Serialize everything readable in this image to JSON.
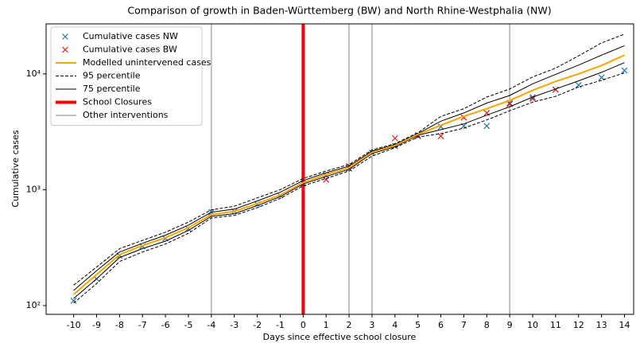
{
  "chart_data": {
    "type": "line",
    "title": "Comparison of growth in Baden-Württemberg (BW) and North Rhine-Westphalia (NW)",
    "x_label": "Days since effective school closure",
    "y_label": "Cumulative cases",
    "y_scale": "log",
    "xlim": [
      -11.2,
      14.4
    ],
    "ylim": [
      84,
      27000
    ],
    "xticks": [
      -10,
      -9,
      -8,
      -7,
      -6,
      -5,
      -4,
      -3,
      -2,
      -1,
      0,
      1,
      2,
      3,
      4,
      5,
      6,
      7,
      8,
      9,
      10,
      11,
      12,
      13,
      14
    ],
    "yticks": [
      {
        "value": 100,
        "label": "10²"
      },
      {
        "value": 1000,
        "label": "10³"
      },
      {
        "value": 10000,
        "label": "10⁴"
      }
    ],
    "x": [
      -10,
      -9,
      -8,
      -7,
      -6,
      -5,
      -4,
      -3,
      -2,
      -1,
      0,
      1,
      2,
      3,
      4,
      5,
      6,
      7,
      8,
      9,
      10,
      11,
      12,
      13,
      14
    ],
    "series": [
      {
        "name": "Cumulative cases NW",
        "color": "#1f77b4",
        "marker": "x",
        "x": [
          -10,
          -9,
          -8,
          -7,
          -6,
          -5,
          -4,
          -3,
          -2,
          -1,
          0,
          1,
          2,
          3,
          4,
          5,
          6,
          7,
          8,
          9,
          10,
          11,
          12,
          13,
          14
        ],
        "values": [
          110,
          170,
          270,
          325,
          380,
          460,
          640,
          650,
          750,
          890,
          1130,
          1330,
          1520,
          2080,
          2380,
          2950,
          3500,
          3550,
          3550,
          5600,
          6300,
          7300,
          8000,
          9300,
          10700
        ]
      },
      {
        "name": "Cumulative cases BW",
        "color": "#e41a1c",
        "marker": "x",
        "x": [
          1,
          2,
          4,
          5,
          6,
          7,
          8,
          9,
          10,
          11
        ],
        "values": [
          1220,
          1600,
          2780,
          2900,
          2900,
          4200,
          4600,
          5500,
          6100,
          7300
        ]
      },
      {
        "name": "Modelled unintervened cases",
        "color": "#ffa500",
        "width": 2,
        "values": [
          125,
          185,
          275,
          330,
          385,
          470,
          610,
          650,
          760,
          900,
          1150,
          1350,
          1550,
          2100,
          2400,
          3000,
          3600,
          4300,
          5000,
          5900,
          7200,
          8600,
          10000,
          11800,
          14500
        ]
      }
    ],
    "bands": [
      {
        "name": "95 percentile",
        "color": "#000000",
        "dash": true,
        "upper": [
          150,
          215,
          310,
          365,
          430,
          525,
          670,
          720,
          850,
          1000,
          1250,
          1450,
          1650,
          2200,
          2500,
          3100,
          4300,
          5000,
          6300,
          7400,
          9400,
          11200,
          14300,
          18500,
          22000
        ],
        "lower": [
          105,
          155,
          240,
          290,
          340,
          420,
          570,
          600,
          700,
          840,
          1080,
          1250,
          1450,
          1950,
          2300,
          2850,
          3050,
          3400,
          4000,
          4800,
          5700,
          6400,
          7700,
          8800,
          10200
        ]
      },
      {
        "name": "75 percentile",
        "color": "#000000",
        "dash": false,
        "upper": [
          135,
          200,
          290,
          345,
          405,
          495,
          640,
          680,
          800,
          950,
          1200,
          1400,
          1600,
          2150,
          2450,
          3050,
          3900,
          4600,
          5600,
          6500,
          8200,
          9900,
          11900,
          14500,
          17500
        ],
        "lower": [
          115,
          170,
          260,
          310,
          360,
          445,
          590,
          620,
          730,
          870,
          1120,
          1300,
          1500,
          2050,
          2350,
          2950,
          3300,
          3700,
          4400,
          5200,
          6300,
          7400,
          8700,
          10300,
          12500
        ]
      }
    ],
    "vlines": [
      {
        "name": "School Closures",
        "color": "#ff0000",
        "width": 4,
        "x": [
          0
        ]
      },
      {
        "name": "Other interventions",
        "color": "#c0c0c0",
        "width": 2,
        "x": [
          -4,
          2,
          3,
          9
        ]
      }
    ]
  }
}
